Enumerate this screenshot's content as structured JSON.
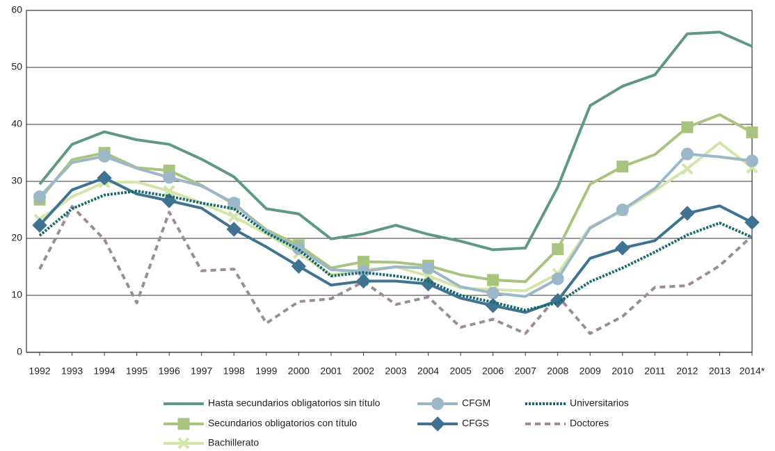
{
  "chart_data": {
    "type": "line",
    "categories": [
      "1992",
      "1993",
      "1994",
      "1995",
      "1996",
      "1997",
      "1998",
      "1999",
      "2000",
      "2001",
      "2002",
      "2003",
      "2004",
      "2005",
      "2006",
      "2007",
      "2008",
      "2009",
      "2010",
      "2011",
      "2012",
      "2013",
      "2014*"
    ],
    "ylim": [
      0,
      60
    ],
    "yticks": [
      0,
      10,
      20,
      30,
      40,
      50,
      60
    ],
    "grid": true,
    "series": [
      {
        "name": "Hasta secundarios obligatorios sin título",
        "color": "#5f9a80",
        "line_style": "solid",
        "marker": "none",
        "values": [
          29.5,
          36.5,
          38.7,
          37.3,
          36.5,
          33.9,
          30.8,
          25.2,
          24.3,
          19.9,
          20.8,
          22.3,
          20.7,
          19.5,
          18.0,
          18.3,
          29.0,
          43.3,
          46.7,
          48.7,
          55.9,
          56.2,
          53.7
        ]
      },
      {
        "name": "Secundarios obligatorios con título",
        "color": "#a9c47f",
        "line_style": "solid",
        "marker": "square",
        "values": [
          26.8,
          33.8,
          35.0,
          32.4,
          31.9,
          29.3,
          26.0,
          21.5,
          18.8,
          14.8,
          15.9,
          15.8,
          15.2,
          13.6,
          12.7,
          12.4,
          18.1,
          29.5,
          32.6,
          34.7,
          39.5,
          41.7,
          38.6
        ]
      },
      {
        "name": "Bachillerato",
        "color": "#d3e5a9",
        "line_style": "solid",
        "marker": "cross",
        "values": [
          23.3,
          27.3,
          29.8,
          29.9,
          28.3,
          26.2,
          23.8,
          20.8,
          17.4,
          13.6,
          14.5,
          15.0,
          13.4,
          11.3,
          11.0,
          10.8,
          13.8,
          22.0,
          24.8,
          28.4,
          32.2,
          36.8,
          32.4
        ]
      },
      {
        "name": "CFGM",
        "color": "#9cb8c8",
        "line_style": "solid",
        "marker": "circle",
        "values": [
          27.3,
          33.3,
          34.4,
          32.3,
          30.7,
          29.2,
          26.2,
          21.2,
          18.2,
          14.5,
          14.2,
          15.0,
          14.8,
          11.5,
          10.4,
          9.8,
          12.9,
          21.8,
          25.0,
          28.8,
          34.8,
          34.3,
          33.6
        ]
      },
      {
        "name": "CFGS",
        "color": "#3f7391",
        "line_style": "solid",
        "marker": "diamond",
        "values": [
          22.3,
          28.5,
          30.6,
          27.8,
          26.6,
          25.3,
          21.6,
          18.5,
          15.1,
          11.8,
          12.5,
          12.5,
          12.0,
          9.5,
          8.2,
          7.0,
          9.1,
          16.5,
          18.3,
          19.6,
          24.4,
          25.7,
          22.8
        ]
      },
      {
        "name": "Universitarios",
        "color": "#17696b",
        "line_style": "dotted",
        "marker": "none",
        "values": [
          20.5,
          25.2,
          27.6,
          28.3,
          27.4,
          26.2,
          25.2,
          21.0,
          18.0,
          13.4,
          14.0,
          13.4,
          12.5,
          10.0,
          8.8,
          7.4,
          8.7,
          12.4,
          14.8,
          17.6,
          20.6,
          22.7,
          20.2
        ]
      },
      {
        "name": "Doctores",
        "color": "#9d8b9b",
        "line_style": "dashed",
        "marker": "none",
        "values": [
          14.6,
          25.6,
          19.8,
          8.7,
          24.6,
          14.3,
          14.6,
          5.1,
          8.9,
          9.4,
          12.4,
          8.4,
          9.7,
          4.4,
          5.8,
          3.3,
          9.9,
          3.3,
          6.3,
          11.4,
          11.7,
          15.2,
          20.4
        ]
      }
    ]
  }
}
